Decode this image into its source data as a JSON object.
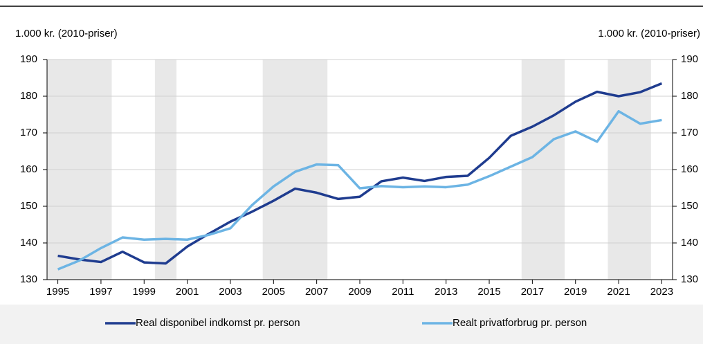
{
  "chart_data": {
    "type": "line",
    "y_axis_label": "1.000 kr. (2010-priser)",
    "y2_axis_label": "1.000 kr. (2010-priser)",
    "x": [
      1995,
      1996,
      1997,
      1998,
      1999,
      2000,
      2001,
      2002,
      2003,
      2004,
      2005,
      2006,
      2007,
      2008,
      2009,
      2010,
      2011,
      2012,
      2013,
      2014,
      2015,
      2016,
      2017,
      2018,
      2019,
      2020,
      2021,
      2022,
      2023
    ],
    "series": [
      {
        "name": "Real disponibel indkomst pr. person",
        "color": "#1f3c8f",
        "values": [
          136.5,
          135.5,
          134.8,
          137.6,
          134.7,
          134.4,
          139.0,
          142.5,
          145.8,
          148.5,
          151.5,
          154.8,
          153.7,
          152.0,
          152.6,
          156.8,
          157.8,
          156.9,
          158.0,
          158.3,
          163.2,
          169.2,
          171.7,
          174.8,
          178.5,
          181.2,
          180.0,
          181.1,
          183.5
        ]
      },
      {
        "name": "Realt privatforbrug pr. person",
        "color": "#6cb4e4",
        "values": [
          132.8,
          135.2,
          138.6,
          141.5,
          140.9,
          141.1,
          140.9,
          142.2,
          144.0,
          150.3,
          155.4,
          159.4,
          161.4,
          161.2,
          154.9,
          155.5,
          155.2,
          155.4,
          155.2,
          155.9,
          158.2,
          160.8,
          163.4,
          168.3,
          170.4,
          167.6,
          175.9,
          172.5,
          173.5
        ]
      }
    ],
    "shaded_ranges": [
      [
        1994.5,
        1997.5
      ],
      [
        1999.5,
        2000.5
      ],
      [
        2004.5,
        2007.5
      ],
      [
        2016.5,
        2018.5
      ],
      [
        2020.5,
        2022.5
      ]
    ],
    "shade_color": "#e8e8e8",
    "xlim": [
      1994.5,
      2023.5
    ],
    "xticks": [
      1995,
      1997,
      1999,
      2001,
      2003,
      2005,
      2007,
      2009,
      2011,
      2013,
      2015,
      2017,
      2019,
      2021,
      2023
    ],
    "ylim": [
      130,
      190
    ],
    "yticks": [
      130,
      140,
      150,
      160,
      170,
      180,
      190
    ],
    "y2lim": [
      130,
      190
    ],
    "y2ticks": [
      130,
      140,
      150,
      160,
      170,
      180,
      190
    ],
    "grid": true,
    "legend": "bottom"
  }
}
